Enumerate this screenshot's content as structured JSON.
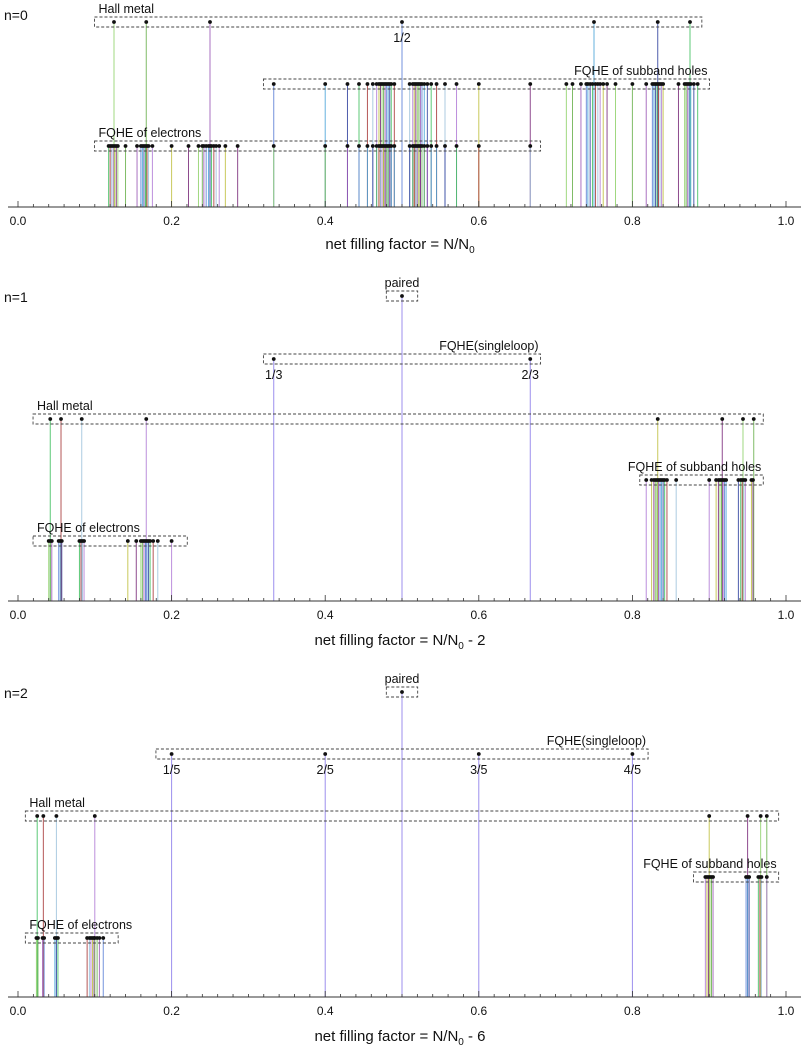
{
  "chart_data": [
    {
      "type": "scatter",
      "panel_label": "n=0",
      "xlabel": "net filling factor = N/N",
      "xlabel_sub": "0",
      "xlabel_suffix": "",
      "xlim": [
        0,
        1
      ],
      "xticks": [
        "0.0",
        "0.2",
        "0.4",
        "0.6",
        "0.8",
        "1.0"
      ],
      "groups": [
        {
          "name": "Hall metal",
          "level": 3,
          "range": [
            0.11,
            0.88
          ],
          "x": [
            0.125,
            0.167,
            0.25,
            0.5,
            0.75,
            0.833,
            0.875
          ],
          "fractions": [
            {
              "x": 0.5,
              "label": "1/2"
            }
          ]
        },
        {
          "name": "FQHE of subband holes",
          "level": 2,
          "range": [
            0.33,
            0.89
          ],
          "x": [
            0.333,
            0.4,
            0.429,
            0.444,
            0.455,
            0.462,
            0.467,
            0.47,
            0.472,
            0.474,
            0.476,
            0.478,
            0.48,
            0.482,
            0.484,
            0.486,
            0.49,
            0.51,
            0.514,
            0.516,
            0.518,
            0.52,
            0.522,
            0.524,
            0.526,
            0.529,
            0.533,
            0.538,
            0.545,
            0.556,
            0.571,
            0.6,
            0.667,
            0.714,
            0.722,
            0.733,
            0.74,
            0.742,
            0.745,
            0.748,
            0.752,
            0.755,
            0.758,
            0.762,
            0.767,
            0.778,
            0.8,
            0.818,
            0.826,
            0.828,
            0.83,
            0.832,
            0.834,
            0.836,
            0.838,
            0.84,
            0.86,
            0.868,
            0.87,
            0.872,
            0.874,
            0.876,
            0.88,
            0.885
          ],
          "fractions": []
        },
        {
          "name": "FQHE of electrons",
          "level": 1,
          "range": [
            0.11,
            0.67
          ],
          "x": [
            0.118,
            0.12,
            0.122,
            0.124,
            0.126,
            0.128,
            0.13,
            0.14,
            0.155,
            0.16,
            0.162,
            0.164,
            0.166,
            0.168,
            0.17,
            0.175,
            0.2,
            0.222,
            0.235,
            0.24,
            0.242,
            0.245,
            0.248,
            0.25,
            0.252,
            0.255,
            0.258,
            0.262,
            0.27,
            0.286,
            0.333,
            0.4,
            0.429,
            0.444,
            0.455,
            0.462,
            0.467,
            0.47,
            0.472,
            0.474,
            0.476,
            0.478,
            0.48,
            0.482,
            0.484,
            0.486,
            0.49,
            0.51,
            0.514,
            0.516,
            0.518,
            0.52,
            0.522,
            0.524,
            0.526,
            0.529,
            0.533,
            0.538,
            0.545,
            0.556,
            0.571,
            0.6,
            0.667
          ],
          "fractions": []
        }
      ]
    },
    {
      "type": "scatter",
      "panel_label": "n=1",
      "xlabel": "net filling factor = N/N",
      "xlabel_sub": "0",
      "xlabel_suffix": " - 2",
      "xlim": [
        0,
        1
      ],
      "xticks": [
        "0.0",
        "0.2",
        "0.4",
        "0.6",
        "0.8",
        "1.0"
      ],
      "groups": [
        {
          "name": "paired",
          "level": 5,
          "range": [
            0.49,
            0.51
          ],
          "x": [
            0.5
          ],
          "fractions": []
        },
        {
          "name": "FQHE(singleloop)",
          "level": 4,
          "range": [
            0.33,
            0.67
          ],
          "x": [
            0.333,
            0.667
          ],
          "fractions": [
            {
              "x": 0.333,
              "label": "1/3"
            },
            {
              "x": 0.667,
              "label": "2/3"
            }
          ]
        },
        {
          "name": "Hall metal",
          "level": 3,
          "range": [
            0.03,
            0.96
          ],
          "x": [
            0.042,
            0.056,
            0.083,
            0.167,
            0.833,
            0.917,
            0.944,
            0.958
          ],
          "fractions": []
        },
        {
          "name": "FQHE of subband holes",
          "level": 2,
          "range": [
            0.82,
            0.96
          ],
          "x": [
            0.818,
            0.825,
            0.828,
            0.83,
            0.832,
            0.834,
            0.836,
            0.838,
            0.84,
            0.842,
            0.845,
            0.857,
            0.9,
            0.909,
            0.912,
            0.914,
            0.916,
            0.918,
            0.92,
            0.922,
            0.938,
            0.941,
            0.943,
            0.945,
            0.947,
            0.955,
            0.957
          ],
          "fractions": []
        },
        {
          "name": "FQHE of electrons",
          "level": 1,
          "range": [
            0.03,
            0.21
          ],
          "x": [
            0.04,
            0.042,
            0.044,
            0.053,
            0.055,
            0.057,
            0.08,
            0.082,
            0.084,
            0.086,
            0.143,
            0.154,
            0.16,
            0.162,
            0.164,
            0.166,
            0.168,
            0.17,
            0.172,
            0.176,
            0.182,
            0.2
          ],
          "fractions": []
        }
      ]
    },
    {
      "type": "scatter",
      "panel_label": "n=2",
      "xlabel": "net filling factor = N/N",
      "xlabel_sub": "0",
      "xlabel_suffix": " - 6",
      "xlim": [
        0,
        1
      ],
      "xticks": [
        "0.0",
        "0.2",
        "0.4",
        "0.6",
        "0.8",
        "1.0"
      ],
      "groups": [
        {
          "name": "paired",
          "level": 5,
          "range": [
            0.49,
            0.51
          ],
          "x": [
            0.5
          ],
          "fractions": []
        },
        {
          "name": "FQHE(singleloop)",
          "level": 4,
          "range": [
            0.19,
            0.81
          ],
          "x": [
            0.2,
            0.4,
            0.6,
            0.8
          ],
          "fractions": [
            {
              "x": 0.2,
              "label": "1/5"
            },
            {
              "x": 0.4,
              "label": "2/5"
            },
            {
              "x": 0.6,
              "label": "3/5"
            },
            {
              "x": 0.8,
              "label": "4/5"
            }
          ]
        },
        {
          "name": "Hall metal",
          "level": 3,
          "range": [
            0.02,
            0.98
          ],
          "x": [
            0.025,
            0.033,
            0.05,
            0.1,
            0.9,
            0.95,
            0.967,
            0.975
          ],
          "fractions": []
        },
        {
          "name": "FQHE of subband holes",
          "level": 2,
          "range": [
            0.89,
            0.98
          ],
          "x": [
            0.895,
            0.897,
            0.899,
            0.901,
            0.903,
            0.905,
            0.948,
            0.95,
            0.952,
            0.964,
            0.966,
            0.968,
            0.975
          ],
          "fractions": []
        },
        {
          "name": "FQHE of electrons",
          "level": 1,
          "range": [
            0.02,
            0.12
          ],
          "x": [
            0.024,
            0.026,
            0.032,
            0.034,
            0.048,
            0.05,
            0.052,
            0.09,
            0.093,
            0.095,
            0.097,
            0.099,
            0.1,
            0.103,
            0.106,
            0.111
          ],
          "fractions": []
        }
      ]
    }
  ],
  "colors": [
    "#8fd16a",
    "#6ab04c",
    "#9b59b6",
    "#5b7fd6",
    "#4aa3d8",
    "#2f3f9e",
    "#3fbf5f",
    "#a83a3a",
    "#9dc2dc",
    "#b07ad6",
    "#bfbf3f",
    "#7a2c7a"
  ]
}
